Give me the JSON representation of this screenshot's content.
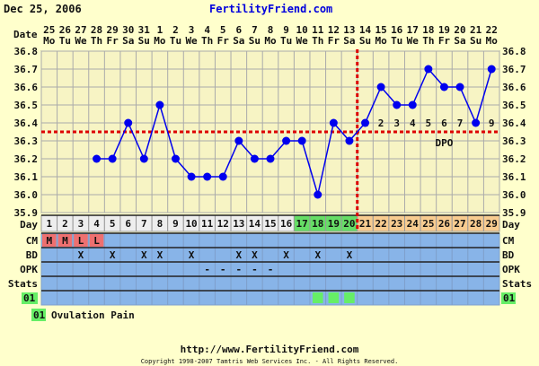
{
  "header": {
    "date": "Dec 25, 2006",
    "site": "FertilityFriend.com"
  },
  "chart_data": {
    "type": "line",
    "dates": [
      "25",
      "26",
      "27",
      "28",
      "29",
      "30",
      "31",
      "1",
      "2",
      "3",
      "4",
      "5",
      "6",
      "7",
      "8",
      "9",
      "10",
      "11",
      "12",
      "13",
      "14",
      "15",
      "16",
      "17",
      "18",
      "19",
      "20",
      "21",
      "22"
    ],
    "weekdays": [
      "Mo",
      "Tu",
      "We",
      "Th",
      "Fr",
      "Sa",
      "Su",
      "Mo",
      "Tu",
      "We",
      "Th",
      "Fr",
      "Sa",
      "Su",
      "Mo",
      "Tu",
      "We",
      "Th",
      "Fr",
      "Sa",
      "Su",
      "Mo",
      "Tu",
      "We",
      "Th",
      "Fr",
      "Sa",
      "Su",
      "Mo"
    ],
    "cycle_days": [
      1,
      2,
      3,
      4,
      5,
      6,
      7,
      8,
      9,
      10,
      11,
      12,
      13,
      14,
      15,
      16,
      17,
      18,
      19,
      20,
      21,
      22,
      23,
      24,
      25,
      26,
      27,
      28,
      29
    ],
    "temperatures": [
      null,
      null,
      null,
      36.2,
      36.2,
      36.4,
      36.2,
      36.5,
      36.2,
      36.1,
      36.1,
      36.1,
      36.3,
      36.2,
      36.2,
      36.3,
      36.3,
      36.0,
      36.4,
      36.3,
      36.4,
      36.6,
      36.5,
      36.5,
      36.7,
      36.6,
      36.6,
      36.4,
      36.7
    ],
    "ylim": [
      35.9,
      36.8
    ],
    "yticks": [
      "36.8",
      "36.7",
      "36.6",
      "36.5",
      "36.4",
      "36.3",
      "36.2",
      "36.1",
      "36.0",
      "35.9"
    ],
    "coverline": 36.35,
    "ovulation_day": 20,
    "dpo_labels": [
      "1",
      "2",
      "3",
      "4",
      "5",
      "6",
      "7",
      "8",
      "9"
    ],
    "dpo_title": "DPO",
    "fertile_days": [
      17,
      18,
      19,
      20
    ],
    "grid": true,
    "line_color": "#0000ee",
    "coverline_color": "#dd0000",
    "row_labels": {
      "date": "Date",
      "day": "Day",
      "cm": "CM",
      "bd": "BD",
      "opk": "OPK",
      "stats": "Stats",
      "code": "01"
    },
    "cm": {
      "1": "M",
      "2": "M",
      "3": "L",
      "4": "L"
    },
    "bd_days": [
      3,
      5,
      7,
      8,
      10,
      13,
      14,
      16,
      18,
      20
    ],
    "bd_mark": "X",
    "opk_days": [
      11,
      12,
      13,
      14,
      15
    ],
    "opk_mark": "-",
    "ovulation_pain_days": [
      18,
      19,
      20
    ]
  },
  "legend": {
    "code": "01",
    "label": "Ovulation Pain"
  },
  "footer": {
    "url": "http://www.FertilityFriend.com",
    "copyright": "Copyright 1998-2007 Tamtris Web Services Inc. - All Rights Reserved."
  }
}
